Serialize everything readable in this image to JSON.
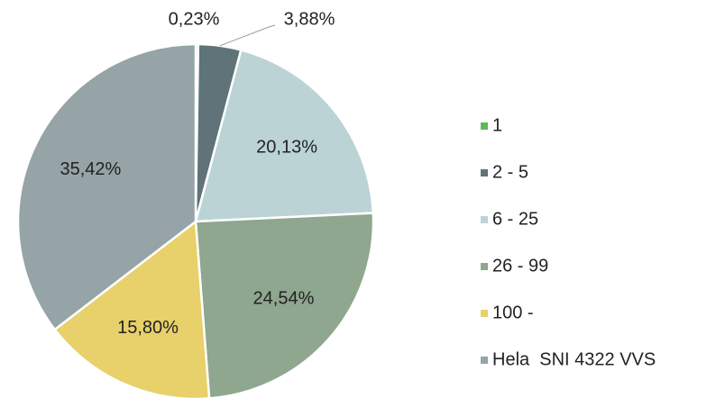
{
  "chart_data": {
    "type": "pie",
    "categories": [
      "1",
      "2 - 5",
      "6 - 25",
      "26 - 99",
      "100 -",
      "Hela  SNI 4322 VVS"
    ],
    "values": [
      0.23,
      3.88,
      20.13,
      24.54,
      15.8,
      35.42
    ],
    "value_labels": [
      "0,23%",
      "3,88%",
      "20,13%",
      "24,54%",
      "15,80%",
      "35,42%"
    ],
    "colors": [
      "#5cb85c",
      "#5f7378",
      "#bcd3d6",
      "#8fa68f",
      "#e8d06a",
      "#96a4a8"
    ],
    "legend": "right"
  }
}
